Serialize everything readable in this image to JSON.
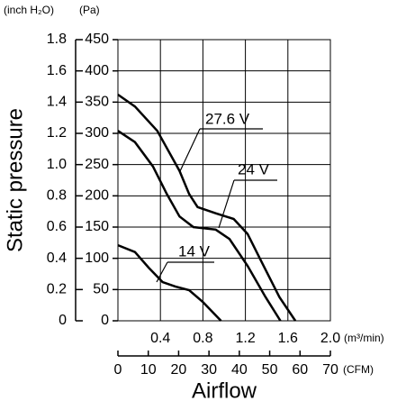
{
  "chart_data": {
    "type": "line",
    "y_label": "Static pressure",
    "x_label": "Airflow",
    "y_unit": "(Pa)",
    "y2_unit": "(inch H₂O)",
    "x_unit": "(m³/min)",
    "x2_unit": "(CFM)",
    "xlim": [
      0,
      2
    ],
    "xticks": [
      0.4,
      0.8,
      1.2,
      1.6,
      {
        "value": 2,
        "label": "2.0"
      }
    ],
    "x2lim": [
      0,
      70
    ],
    "x2ticks": [
      0,
      10,
      20,
      30,
      40,
      50,
      60,
      70
    ],
    "ylim": [
      0,
      450
    ],
    "yticks": [
      0,
      50,
      100,
      150,
      200,
      250,
      300,
      350,
      400,
      450
    ],
    "y2lim": [
      0,
      1.8
    ],
    "y2ticks": [
      0,
      0.2,
      0.4,
      0.6,
      0.8,
      {
        "value": 1,
        "label": "1.0"
      },
      1.2,
      1.4,
      1.6,
      1.8
    ],
    "grid": true,
    "series": [
      {
        "name": "27.6 V",
        "color": "#000000",
        "x": [
          0,
          0.16,
          0.37,
          0.58,
          0.67,
          0.75,
          0.92,
          1.09,
          1.22,
          1.35,
          1.52,
          1.67
        ],
        "values": [
          362,
          343,
          304,
          240,
          203,
          182,
          172,
          163,
          139,
          95,
          38,
          0
        ]
      },
      {
        "name": "24 V",
        "color": "#000000",
        "x": [
          0,
          0.16,
          0.33,
          0.46,
          0.58,
          0.71,
          0.92,
          1.05,
          1.22,
          1.39,
          1.53
        ],
        "values": [
          304,
          286,
          247,
          203,
          167,
          150,
          146,
          131,
          88,
          38,
          0
        ]
      },
      {
        "name": "14 V",
        "color": "#000000",
        "x": [
          0,
          0.16,
          0.29,
          0.42,
          0.54,
          0.67,
          0.8,
          0.97
        ],
        "values": [
          121,
          110,
          85,
          62,
          55,
          49,
          30,
          0
        ]
      }
    ]
  }
}
